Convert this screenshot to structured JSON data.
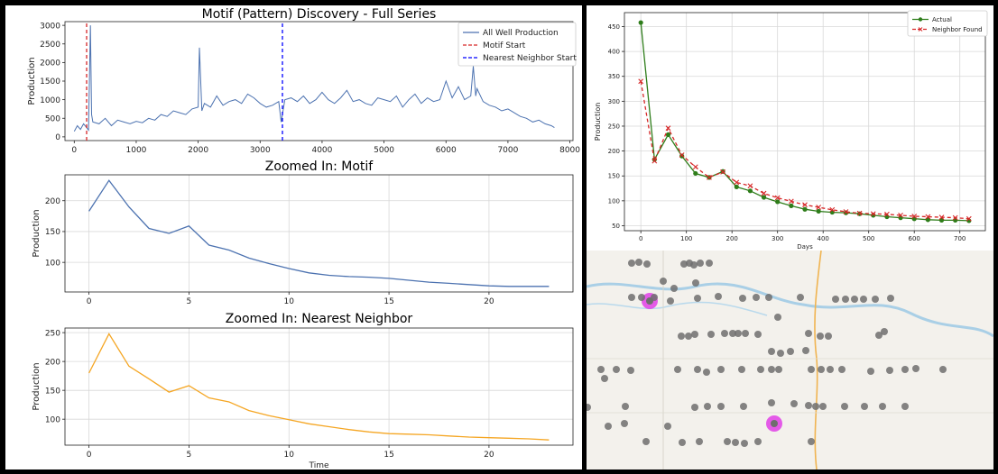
{
  "chart_data": [
    {
      "type": "line",
      "title": "Motif (Pattern) Discovery - Full Series",
      "xlabel": "",
      "ylabel": "Production",
      "xlim": [
        -150,
        8050
      ],
      "ylim": [
        -100,
        3100
      ],
      "xticks": [
        0,
        1000,
        2000,
        3000,
        4000,
        5000,
        6000,
        7000,
        8000
      ],
      "yticks": [
        0,
        500,
        1000,
        1500,
        2000,
        2500,
        3000
      ],
      "grid": false,
      "legend_position": "top-right",
      "series": [
        {
          "name": "All Well Production",
          "color": "#4c72b0",
          "style": "solid",
          "x": [
            0,
            50,
            100,
            150,
            200,
            230,
            260,
            280,
            300,
            400,
            500,
            600,
            700,
            800,
            900,
            1000,
            1100,
            1200,
            1300,
            1400,
            1500,
            1600,
            1700,
            1800,
            1900,
            2000,
            2020,
            2060,
            2100,
            2200,
            2300,
            2400,
            2500,
            2600,
            2700,
            2800,
            2900,
            3000,
            3100,
            3200,
            3300,
            3340,
            3400,
            3500,
            3600,
            3700,
            3800,
            3900,
            4000,
            4100,
            4200,
            4300,
            4400,
            4500,
            4600,
            4700,
            4800,
            4900,
            5000,
            5100,
            5200,
            5300,
            5400,
            5500,
            5600,
            5700,
            5800,
            5900,
            6000,
            6100,
            6200,
            6300,
            6400,
            6440,
            6480,
            6500,
            6600,
            6700,
            6800,
            6900,
            7000,
            7100,
            7200,
            7300,
            7400,
            7500,
            7600,
            7700,
            7750
          ],
          "y": [
            150,
            300,
            200,
            350,
            250,
            180,
            3000,
            600,
            400,
            350,
            500,
            300,
            450,
            400,
            350,
            420,
            380,
            500,
            450,
            600,
            550,
            700,
            650,
            600,
            750,
            800,
            2400,
            700,
            900,
            800,
            1100,
            850,
            950,
            1000,
            900,
            1150,
            1050,
            900,
            800,
            850,
            950,
            400,
            1000,
            1050,
            950,
            1100,
            900,
            1000,
            1200,
            1000,
            900,
            1050,
            1250,
            950,
            1000,
            900,
            850,
            1050,
            1000,
            950,
            1100,
            800,
            1000,
            1150,
            900,
            1050,
            950,
            1000,
            1500,
            1050,
            1350,
            1000,
            1100,
            1900,
            1100,
            1300,
            950,
            850,
            800,
            700,
            750,
            650,
            550,
            500,
            400,
            450,
            350,
            300,
            250
          ]
        },
        {
          "name": "Motif Start",
          "color": "#d62728",
          "style": "dashed",
          "x": [
            200,
            200
          ],
          "y": [
            -100,
            3100
          ]
        },
        {
          "name": "Nearest Neighbor Start",
          "color": "#0000ff",
          "style": "dashed",
          "x": [
            3360,
            3360
          ],
          "y": [
            -100,
            3100
          ]
        }
      ]
    },
    {
      "type": "line",
      "title": "Zoomed In: Motif",
      "xlabel": "",
      "ylabel": "Production",
      "xlim": [
        -1.2,
        24.2
      ],
      "ylim": [
        52,
        242
      ],
      "xticks": [
        0,
        5,
        10,
        15,
        20
      ],
      "yticks": [
        100,
        150,
        200
      ],
      "grid": true,
      "series": [
        {
          "name": "",
          "color": "#4c72b0",
          "style": "solid",
          "x": [
            0,
            1,
            2,
            3,
            4,
            5,
            6,
            7,
            8,
            9,
            10,
            11,
            12,
            13,
            14,
            15,
            16,
            17,
            18,
            19,
            20,
            21,
            22,
            23
          ],
          "y": [
            183,
            233,
            190,
            155,
            147,
            159,
            128,
            120,
            107,
            98,
            90,
            83,
            79,
            77,
            76,
            74,
            71,
            68,
            66,
            64,
            62,
            61,
            61,
            61
          ]
        }
      ]
    },
    {
      "type": "line",
      "title": "Zoomed In: Nearest Neighbor",
      "xlabel": "Time",
      "ylabel": "Production",
      "xlim": [
        -1.2,
        24.2
      ],
      "ylim": [
        55,
        258
      ],
      "xticks": [
        0,
        5,
        10,
        15,
        20
      ],
      "yticks": [
        100,
        150,
        200,
        250
      ],
      "grid": true,
      "series": [
        {
          "name": "",
          "color": "#f5a623",
          "style": "solid",
          "x": [
            0,
            1,
            2,
            3,
            4,
            5,
            6,
            7,
            8,
            9,
            10,
            11,
            12,
            13,
            14,
            15,
            16,
            17,
            18,
            19,
            20,
            21,
            22,
            23
          ],
          "y": [
            180,
            248,
            192,
            170,
            147,
            158,
            137,
            130,
            115,
            106,
            99,
            92,
            87,
            82,
            78,
            75,
            74,
            73,
            71,
            69,
            68,
            67,
            66,
            64
          ]
        }
      ]
    },
    {
      "type": "line",
      "title": "",
      "xlabel": "Days",
      "ylabel": "Production",
      "xlim": [
        -36,
        756
      ],
      "ylim": [
        40,
        478
      ],
      "xticks": [
        0,
        100,
        200,
        300,
        400,
        500,
        600,
        700
      ],
      "yticks": [
        50,
        100,
        150,
        200,
        250,
        300,
        350,
        400,
        450
      ],
      "grid": true,
      "legend_position": "top-right",
      "series": [
        {
          "name": "Actual",
          "color": "#2e7d1a",
          "style": "solid",
          "marker": "circle",
          "x": [
            0,
            30,
            60,
            90,
            120,
            150,
            180,
            210,
            240,
            270,
            300,
            330,
            360,
            390,
            420,
            450,
            480,
            510,
            540,
            570,
            600,
            630,
            660,
            690,
            720
          ],
          "y": [
            458,
            183,
            233,
            190,
            155,
            147,
            159,
            128,
            120,
            107,
            98,
            90,
            83,
            79,
            77,
            76,
            74,
            71,
            68,
            66,
            64,
            62,
            61,
            61,
            60
          ]
        },
        {
          "name": "Neighbor Found",
          "color": "#d62728",
          "style": "dashed",
          "marker": "x",
          "x": [
            0,
            30,
            60,
            90,
            120,
            150,
            180,
            210,
            240,
            270,
            300,
            330,
            360,
            390,
            420,
            450,
            480,
            510,
            540,
            570,
            600,
            630,
            660,
            690,
            720
          ],
          "y": [
            340,
            180,
            246,
            192,
            168,
            147,
            158,
            137,
            130,
            115,
            106,
            99,
            92,
            87,
            82,
            78,
            75,
            74,
            73,
            71,
            69,
            68,
            67,
            66,
            64
          ]
        }
      ]
    }
  ],
  "map": {
    "background": "#f3f1ec",
    "well_color": "#6e6e6e",
    "highlight_color": "#e040e8",
    "wells": [
      [
        700,
        292
      ],
      [
        708,
        291
      ],
      [
        717,
        293
      ],
      [
        735,
        312
      ],
      [
        747,
        320
      ],
      [
        758,
        293
      ],
      [
        764,
        292
      ],
      [
        769,
        294
      ],
      [
        776,
        292
      ],
      [
        786,
        292
      ],
      [
        771,
        314
      ],
      [
        700,
        330
      ],
      [
        711,
        330
      ],
      [
        725,
        330
      ],
      [
        743,
        334
      ],
      [
        773,
        331
      ],
      [
        796,
        329
      ],
      [
        823,
        331
      ],
      [
        838,
        330
      ],
      [
        852,
        330
      ],
      [
        862,
        352
      ],
      [
        887,
        330
      ],
      [
        926,
        332
      ],
      [
        937,
        332
      ],
      [
        947,
        332
      ],
      [
        957,
        332
      ],
      [
        970,
        332
      ],
      [
        987,
        331
      ],
      [
        755,
        373
      ],
      [
        763,
        373
      ],
      [
        770,
        371
      ],
      [
        788,
        371
      ],
      [
        803,
        370
      ],
      [
        812,
        370
      ],
      [
        818,
        370
      ],
      [
        826,
        370
      ],
      [
        840,
        371
      ],
      [
        855,
        390
      ],
      [
        865,
        392
      ],
      [
        876,
        390
      ],
      [
        893,
        389
      ],
      [
        896,
        370
      ],
      [
        909,
        373
      ],
      [
        918,
        373
      ],
      [
        974,
        372
      ],
      [
        980,
        368
      ],
      [
        666,
        410
      ],
      [
        670,
        420
      ],
      [
        683,
        410
      ],
      [
        699,
        411
      ],
      [
        751,
        410
      ],
      [
        773,
        410
      ],
      [
        783,
        413
      ],
      [
        799,
        410
      ],
      [
        822,
        410
      ],
      [
        843,
        410
      ],
      [
        855,
        410
      ],
      [
        863,
        410
      ],
      [
        899,
        410
      ],
      [
        910,
        410
      ],
      [
        920,
        410
      ],
      [
        933,
        410
      ],
      [
        965,
        412
      ],
      [
        986,
        411
      ],
      [
        1003,
        410
      ],
      [
        1015,
        409
      ],
      [
        1045,
        410
      ],
      [
        651,
        452
      ],
      [
        693,
        451
      ],
      [
        770,
        452
      ],
      [
        784,
        451
      ],
      [
        799,
        451
      ],
      [
        824,
        451
      ],
      [
        855,
        447
      ],
      [
        880,
        448
      ],
      [
        896,
        450
      ],
      [
        904,
        451
      ],
      [
        912,
        451
      ],
      [
        936,
        451
      ],
      [
        958,
        451
      ],
      [
        978,
        451
      ],
      [
        1003,
        451
      ],
      [
        674,
        473
      ],
      [
        692,
        470
      ],
      [
        740,
        473
      ],
      [
        716,
        490
      ],
      [
        756,
        491
      ],
      [
        775,
        490
      ],
      [
        806,
        490
      ],
      [
        815,
        491
      ],
      [
        825,
        492
      ],
      [
        840,
        490
      ],
      [
        899,
        490
      ]
    ],
    "highlights": [
      [
        720,
        334
      ],
      [
        858,
        470
      ]
    ]
  }
}
